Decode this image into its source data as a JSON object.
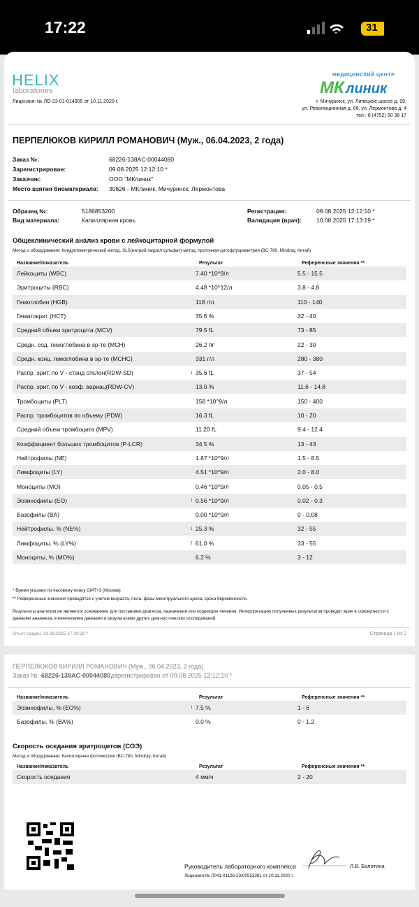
{
  "status_bar": {
    "time": "17:22",
    "battery": "31"
  },
  "page1": {
    "logo": {
      "name": "HELIX",
      "sub": "laboratories"
    },
    "license": "Лицензия: № ЛО-23-01-014905 от 10.11.2020 г.",
    "center": {
      "caption": "МЕДИЦИНСКИЙ ЦЕНТР",
      "logo_a": "МК",
      "logo_b": "линик",
      "address": [
        "г. Мичуринск, ул. Липецкое шоссе д. 99,",
        "ул. Революционная д. 66, ул. Лермонтова д. 4",
        "тел.:  8 (4752) 50 38 17"
      ]
    },
    "patient": "ПЕРПЕЛЮКОВ КИРИЛЛ РОМАНОВИЧ (Муж., 06.04.2023, 2 года)",
    "order": [
      [
        "Заказ №:",
        "68226-138AC-00044080"
      ],
      [
        "Зарегистрирован:",
        "09.08.2025 12:12:10 *"
      ],
      [
        "Заказчик:",
        "ООО \"МКлиник\""
      ],
      [
        "Место взятия биоматериала:",
        "30626 - МКлиник, Мичуринск, Лермонтова"
      ]
    ],
    "sample_left": [
      [
        "Образец №:",
        "5186853200"
      ],
      [
        "Вид материала:",
        "Капиллярная кровь"
      ]
    ],
    "sample_right": [
      [
        "Регистрация:",
        "09.08.2025 12:12:10 *"
      ],
      [
        "Валидация (врач):",
        "10.08.2025 17:13:19 *"
      ]
    ],
    "section": {
      "title": "Общеклинический анализ крови с лейкоцитарной формулой",
      "method": "Метод и оборудование: Кондуктометрический метод, SLS(натрий лаурил сульфат)-метод, проточная цитофлуориметрия (BC-780, Mindray, Китай)",
      "header": [
        "Название/показатель",
        "Результат",
        "Референсные значения **"
      ],
      "rows": [
        {
          "name": "Лейкоциты (WBC)",
          "result": "7.40 *10^9/л",
          "ref": "5.5 - 15.5"
        },
        {
          "name": "Эритроциты (RBC)",
          "result": "4.48 *10^12/л",
          "ref": "3.8 - 4.8"
        },
        {
          "name": "Гемоглобин (HGB)",
          "result": "118 г/л",
          "ref": "110 - 140"
        },
        {
          "name": "Гематокрит (HCT)",
          "result": "35.6 %",
          "ref": "32 - 40"
        },
        {
          "name": "Средний объем эритроцита (MCV)",
          "result": "79.5 fL",
          "ref": "73 - 85"
        },
        {
          "name": "Средн. сод. гемоглобина в эр-те (MCH)",
          "result": "26.2 пг",
          "ref": "22 - 30"
        },
        {
          "name": "Средн. конц. гемоглобина в эр-те (MCHC)",
          "result": "331 г/л",
          "ref": "280 - 380"
        },
        {
          "name": "Распр. эрит. по V - станд отклон(RDW-SD)",
          "flag": "↓",
          "result": "35.6 fL",
          "ref": "37 - 54"
        },
        {
          "name": "Распр. эрит. по V - коэф. вариац(RDW-CV)",
          "result": "13.0 %",
          "ref": "11.6 - 14.8"
        },
        {
          "name": "Тромбоциты (PLT)",
          "result": "158 *10^9/л",
          "ref": "150 - 400"
        },
        {
          "name": "Распр. тромбоцитов по объему (PDW)",
          "result": "16.3 fL",
          "ref": "10 - 20"
        },
        {
          "name": "Средний объем тромбоцита (MPV)",
          "result": "11.20 fL",
          "ref": "9.4 - 12.4"
        },
        {
          "name": "Коэффициент больших тромбоцитов (P-LCR)",
          "result": "34.5 %",
          "ref": "13 - 43"
        },
        {
          "name": "Нейтрофилы (NE)",
          "result": "1.87 *10^9/л",
          "ref": "1.5 - 8.5"
        },
        {
          "name": "Лимфоциты (LY)",
          "result": "4.51 *10^9/л",
          "ref": "2.0 - 8.0"
        },
        {
          "name": "Моноциты (MO)",
          "result": "0.46 *10^9/л",
          "ref": "0.05 - 0.5"
        },
        {
          "name": "Эозинофилы (EO)",
          "flag": "↑",
          "result": "0.56 *10^9/л",
          "ref": "0.02 - 0.3"
        },
        {
          "name": "Базофилы (BA)",
          "result": "0.00 *10^9/л",
          "ref": "0 - 0.08"
        },
        {
          "name": "Нейтрофилы, % (NE%)",
          "flag": "↓",
          "result": "25.3 %",
          "ref": "32 - 55"
        },
        {
          "name": "Лимфоциты, % (LY%)",
          "flag": "↑",
          "result": "61.0 %",
          "ref": "33 - 55"
        },
        {
          "name": "Моноциты, % (MO%)",
          "result": "6.2 %",
          "ref": "3 - 12"
        }
      ]
    },
    "notes": [
      "* Время указано по часовому поясу GMT+3 (Москва)",
      "** Референсные значения приводятся с учетом возраста, пола, фазы менструального цикла, срока беременности."
    ],
    "disclaimer": "Результаты анализов не являются основанием для постановки диагноза, назначения или коррекции лечения. Интерпретацию полученных результатов проводит врач в совокупности с данными анамнеза, клиническими данными и результатами других диагностических исследований.",
    "created": "Отчет создан: 10.08.2025 17:19:20 *",
    "page": "Страница 1 из 2"
  },
  "page2": {
    "patient": "ПЕРПЕЛЮКОВ КИРИЛЛ РОМАНОВИЧ (Муж., 06.04.2023, 2 года)",
    "order_label": "Заказ №:",
    "order_no": "68226-138AC-00044080,",
    "order_reg": "зарегистрирован от 09.08.2025 12:12:10 *",
    "table": {
      "header": [
        "Название/показатель",
        "Результат",
        "Референсные значения **"
      ],
      "rows": [
        {
          "name": "Эозинофилы, % (EO%)",
          "flag": "↑",
          "result": "7.5 %",
          "ref": "1 - 6"
        },
        {
          "name": "Базофилы, % (BA%)",
          "result": "0.0 %",
          "ref": "0 - 1.2"
        }
      ]
    },
    "section": {
      "title": "Скорость оседания эритроцитов (СОЭ)",
      "method": "Метод и оборудование: Капиллярная фотометрия (BC-780, Mindray, Китай)",
      "header": [
        "Название/показатель",
        "Результат",
        "Референсные значения **"
      ],
      "rows": [
        {
          "name": "Скорость оседания",
          "result": "4 мм/ч",
          "ref": "2 - 20"
        }
      ]
    },
    "signature": {
      "role": "Руководитель лабораторного комплекса",
      "name": "Л.В. Болотина",
      "license": "Лицензия № Л041-01126-23/00553381 от 10.11.2020 г."
    }
  }
}
